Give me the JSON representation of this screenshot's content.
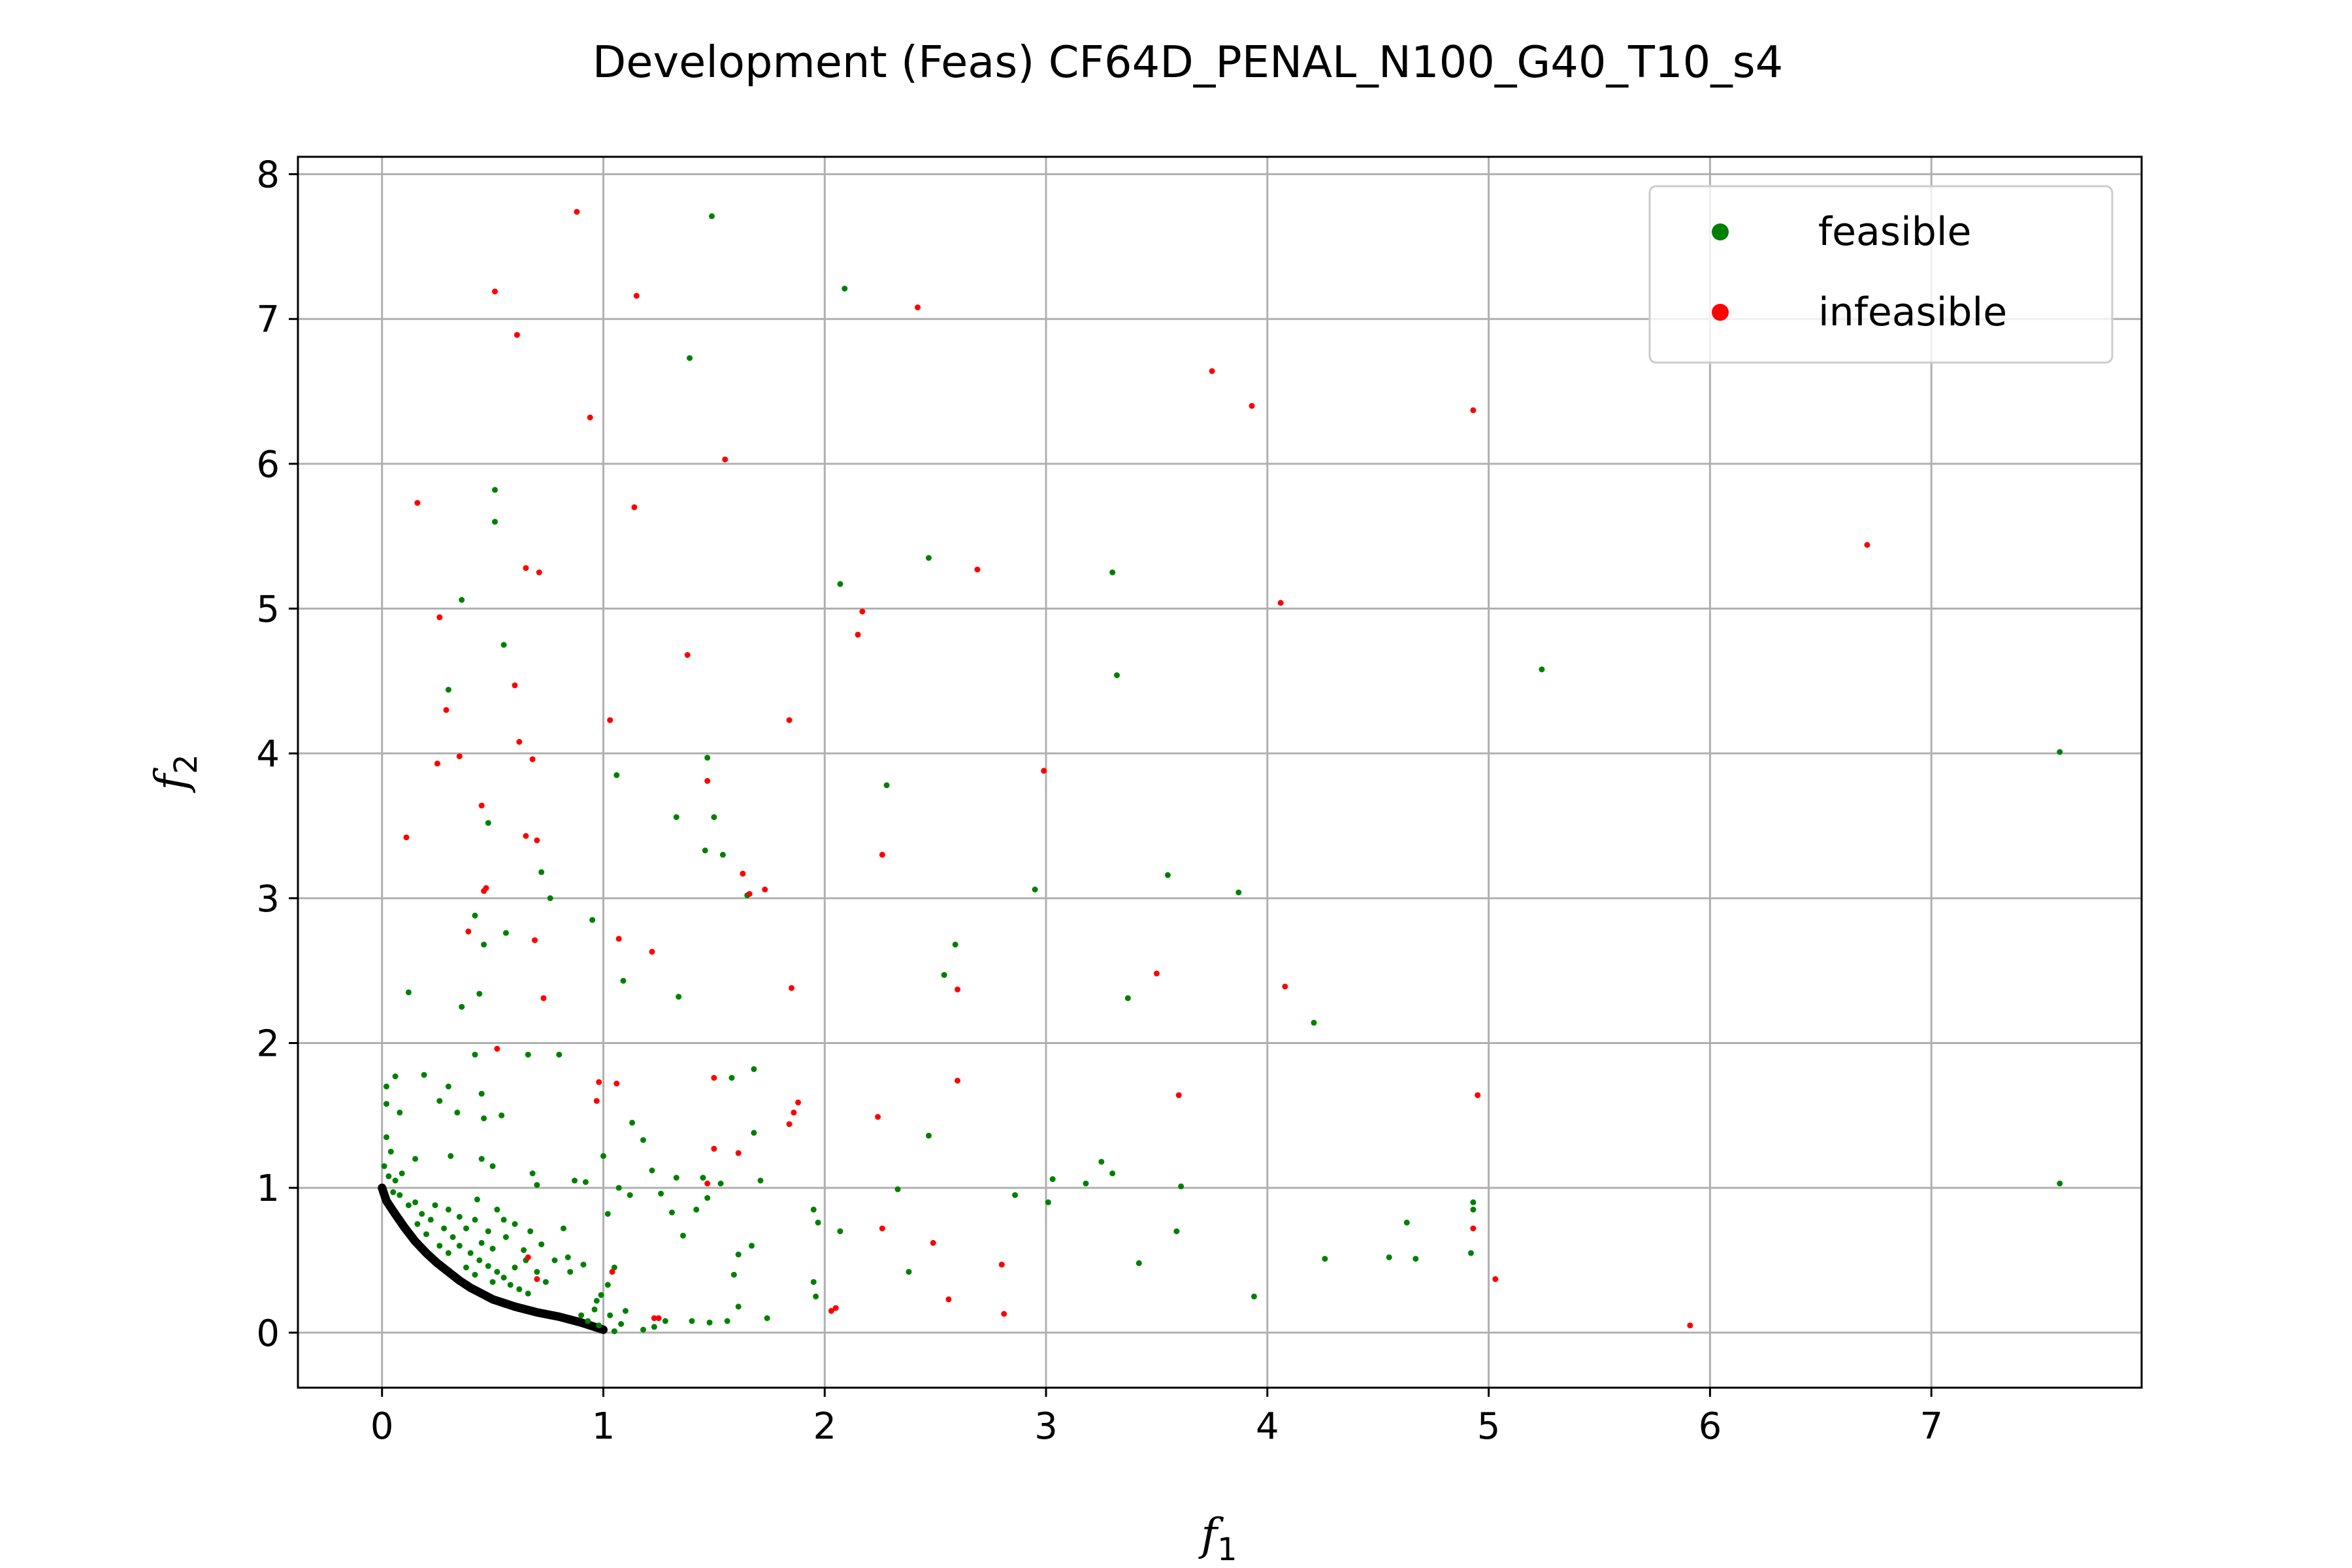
{
  "chart_data": {
    "type": "scatter",
    "title": "Development (Feas) CF64D_PENAL_N100_G40_T10_s4",
    "xlabel": "f",
    "xlabel_sub": "1",
    "ylabel": "f",
    "ylabel_sub": "2",
    "xlim": [
      -0.38,
      7.95
    ],
    "ylim": [
      -0.38,
      8.12
    ],
    "xticks": [
      0,
      1,
      2,
      3,
      4,
      5,
      6,
      7
    ],
    "yticks": [
      0,
      1,
      2,
      3,
      4,
      5,
      6,
      7,
      8
    ],
    "grid": true,
    "legend_position": "top-right",
    "legend": [
      {
        "label": "feasible",
        "color": "#008000"
      },
      {
        "label": "infeasible",
        "color": "#ff0000"
      }
    ],
    "front_color": "#000000",
    "front_curve": [
      [
        0.0,
        1.0
      ],
      [
        0.02,
        0.91
      ],
      [
        0.05,
        0.84
      ],
      [
        0.1,
        0.73
      ],
      [
        0.15,
        0.63
      ],
      [
        0.2,
        0.55
      ],
      [
        0.25,
        0.48
      ],
      [
        0.3,
        0.42
      ],
      [
        0.35,
        0.36
      ],
      [
        0.4,
        0.31
      ],
      [
        0.45,
        0.27
      ],
      [
        0.5,
        0.23
      ],
      [
        0.6,
        0.18
      ],
      [
        0.7,
        0.14
      ],
      [
        0.8,
        0.11
      ],
      [
        0.9,
        0.07
      ],
      [
        1.0,
        0.02
      ]
    ],
    "series": [
      {
        "name": "feasible",
        "color": "#008000",
        "points": [
          [
            1.49,
            7.71
          ],
          [
            2.09,
            7.21
          ],
          [
            1.39,
            6.73
          ],
          [
            0.51,
            5.82
          ],
          [
            0.51,
            5.6
          ],
          [
            2.47,
            5.35
          ],
          [
            3.3,
            5.25
          ],
          [
            2.07,
            5.17
          ],
          [
            0.36,
            5.06
          ],
          [
            0.55,
            4.75
          ],
          [
            5.24,
            4.58
          ],
          [
            3.32,
            4.54
          ],
          [
            0.3,
            4.44
          ],
          [
            1.47,
            3.97
          ],
          [
            1.06,
            3.85
          ],
          [
            2.28,
            3.78
          ],
          [
            7.58,
            4.01
          ],
          [
            1.33,
            3.56
          ],
          [
            1.5,
            3.56
          ],
          [
            0.48,
            3.52
          ],
          [
            1.46,
            3.33
          ],
          [
            1.54,
            3.3
          ],
          [
            0.72,
            3.18
          ],
          [
            0.76,
            3.0
          ],
          [
            2.95,
            3.06
          ],
          [
            3.55,
            3.16
          ],
          [
            3.87,
            3.04
          ],
          [
            1.65,
            3.02
          ],
          [
            0.42,
            2.88
          ],
          [
            0.95,
            2.85
          ],
          [
            0.56,
            2.76
          ],
          [
            0.46,
            2.68
          ],
          [
            2.59,
            2.68
          ],
          [
            2.54,
            2.47
          ],
          [
            1.09,
            2.43
          ],
          [
            0.12,
            2.35
          ],
          [
            0.44,
            2.34
          ],
          [
            1.34,
            2.32
          ],
          [
            3.37,
            2.31
          ],
          [
            0.36,
            2.25
          ],
          [
            4.21,
            2.14
          ],
          [
            0.42,
            1.92
          ],
          [
            0.66,
            1.92
          ],
          [
            0.8,
            1.92
          ],
          [
            1.68,
            1.82
          ],
          [
            1.58,
            1.76
          ],
          [
            0.02,
            1.7
          ],
          [
            0.06,
            1.77
          ],
          [
            0.19,
            1.78
          ],
          [
            0.3,
            1.7
          ],
          [
            0.45,
            1.65
          ],
          [
            0.26,
            1.6
          ],
          [
            0.02,
            1.58
          ],
          [
            0.08,
            1.52
          ],
          [
            0.34,
            1.52
          ],
          [
            0.46,
            1.48
          ],
          [
            0.54,
            1.5
          ],
          [
            1.13,
            1.45
          ],
          [
            1.68,
            1.38
          ],
          [
            2.47,
            1.36
          ],
          [
            0.02,
            1.35
          ],
          [
            0.04,
            1.25
          ],
          [
            0.15,
            1.2
          ],
          [
            0.31,
            1.22
          ],
          [
            0.45,
            1.2
          ],
          [
            1.0,
            1.22
          ],
          [
            1.18,
            1.33
          ],
          [
            1.22,
            1.12
          ],
          [
            1.33,
            1.07
          ],
          [
            1.45,
            1.07
          ],
          [
            1.71,
            1.05
          ],
          [
            1.53,
            1.03
          ],
          [
            0.01,
            1.15
          ],
          [
            0.03,
            1.08
          ],
          [
            0.06,
            1.05
          ],
          [
            0.09,
            1.1
          ],
          [
            0.5,
            1.15
          ],
          [
            0.68,
            1.1
          ],
          [
            0.7,
            1.02
          ],
          [
            0.87,
            1.05
          ],
          [
            0.92,
            1.04
          ],
          [
            1.07,
            1.0
          ],
          [
            3.25,
            1.18
          ],
          [
            3.03,
            1.06
          ],
          [
            3.18,
            1.03
          ],
          [
            3.3,
            1.1
          ],
          [
            3.61,
            1.01
          ],
          [
            7.58,
            1.03
          ],
          [
            1.02,
            0.82
          ],
          [
            1.26,
            0.96
          ],
          [
            1.12,
            0.95
          ],
          [
            1.31,
            0.83
          ],
          [
            1.36,
            0.67
          ],
          [
            1.42,
            0.85
          ],
          [
            1.47,
            0.93
          ],
          [
            1.95,
            0.85
          ],
          [
            1.97,
            0.76
          ],
          [
            2.07,
            0.7
          ],
          [
            2.33,
            0.99
          ],
          [
            2.86,
            0.95
          ],
          [
            3.01,
            0.9
          ],
          [
            3.59,
            0.7
          ],
          [
            4.93,
            0.9
          ],
          [
            4.93,
            0.85
          ],
          [
            4.63,
            0.76
          ],
          [
            4.55,
            0.52
          ],
          [
            4.67,
            0.51
          ],
          [
            4.26,
            0.51
          ],
          [
            4.92,
            0.55
          ],
          [
            3.42,
            0.48
          ],
          [
            3.94,
            0.25
          ],
          [
            2.38,
            0.42
          ],
          [
            1.61,
            0.54
          ],
          [
            1.67,
            0.6
          ],
          [
            1.59,
            0.4
          ],
          [
            1.95,
            0.35
          ],
          [
            1.96,
            0.25
          ],
          [
            1.61,
            0.18
          ],
          [
            1.74,
            0.1
          ],
          [
            1.56,
            0.08
          ],
          [
            1.48,
            0.07
          ],
          [
            1.4,
            0.08
          ],
          [
            1.28,
            0.08
          ],
          [
            1.23,
            0.04
          ],
          [
            1.18,
            0.02
          ],
          [
            1.05,
            0.01
          ],
          [
            0.98,
            0.05
          ],
          [
            1.03,
            0.12
          ],
          [
            0.97,
            0.22
          ],
          [
            1.02,
            0.33
          ],
          [
            1.05,
            0.45
          ],
          [
            0.84,
            0.52
          ],
          [
            0.78,
            0.5
          ],
          [
            0.85,
            0.42
          ],
          [
            0.91,
            0.47
          ],
          [
            0.72,
            0.61
          ],
          [
            0.67,
            0.7
          ],
          [
            0.82,
            0.72
          ],
          [
            0.6,
            0.75
          ],
          [
            0.55,
            0.78
          ],
          [
            0.52,
            0.85
          ],
          [
            0.43,
            0.92
          ],
          [
            0.38,
            0.72
          ],
          [
            0.24,
            0.88
          ],
          [
            0.15,
            0.9
          ],
          [
            0.08,
            0.95
          ],
          [
            0.05,
            0.97
          ],
          [
            0.12,
            0.88
          ],
          [
            0.18,
            0.82
          ],
          [
            0.22,
            0.78
          ],
          [
            0.28,
            0.72
          ],
          [
            0.32,
            0.66
          ],
          [
            0.35,
            0.6
          ],
          [
            0.4,
            0.55
          ],
          [
            0.44,
            0.5
          ],
          [
            0.48,
            0.46
          ],
          [
            0.52,
            0.42
          ],
          [
            0.55,
            0.38
          ],
          [
            0.5,
            0.35
          ],
          [
            0.42,
            0.4
          ],
          [
            0.38,
            0.45
          ],
          [
            0.3,
            0.55
          ],
          [
            0.26,
            0.6
          ],
          [
            0.2,
            0.68
          ],
          [
            0.16,
            0.75
          ],
          [
            0.58,
            0.33
          ],
          [
            0.62,
            0.3
          ],
          [
            0.66,
            0.27
          ],
          [
            0.6,
            0.45
          ],
          [
            0.65,
            0.5
          ],
          [
            0.7,
            0.42
          ],
          [
            0.74,
            0.35
          ],
          [
            0.45,
            0.62
          ],
          [
            0.5,
            0.58
          ],
          [
            0.35,
            0.8
          ],
          [
            0.3,
            0.85
          ],
          [
            0.9,
            0.12
          ],
          [
            0.93,
            0.08
          ],
          [
            0.96,
            0.16
          ],
          [
            0.99,
            0.26
          ],
          [
            1.08,
            0.06
          ],
          [
            1.1,
            0.15
          ],
          [
            0.56,
            0.66
          ],
          [
            0.64,
            0.57
          ],
          [
            0.48,
            0.7
          ],
          [
            0.42,
            0.78
          ]
        ]
      },
      {
        "name": "infeasible",
        "color": "#ff0000",
        "points": [
          [
            0.88,
            7.74
          ],
          [
            0.51,
            7.19
          ],
          [
            1.15,
            7.16
          ],
          [
            2.42,
            7.08
          ],
          [
            0.61,
            6.89
          ],
          [
            3.75,
            6.64
          ],
          [
            3.93,
            6.4
          ],
          [
            0.94,
            6.32
          ],
          [
            4.93,
            6.37
          ],
          [
            1.55,
            6.03
          ],
          [
            0.16,
            5.73
          ],
          [
            1.14,
            5.7
          ],
          [
            6.71,
            5.44
          ],
          [
            0.65,
            5.28
          ],
          [
            0.71,
            5.25
          ],
          [
            2.69,
            5.27
          ],
          [
            4.06,
            5.04
          ],
          [
            2.17,
            4.98
          ],
          [
            0.26,
            4.94
          ],
          [
            2.15,
            4.82
          ],
          [
            1.38,
            4.68
          ],
          [
            0.6,
            4.47
          ],
          [
            0.29,
            4.3
          ],
          [
            1.03,
            4.23
          ],
          [
            1.84,
            4.23
          ],
          [
            0.62,
            4.08
          ],
          [
            0.35,
            3.98
          ],
          [
            0.25,
            3.93
          ],
          [
            0.68,
            3.96
          ],
          [
            2.99,
            3.88
          ],
          [
            1.47,
            3.81
          ],
          [
            0.45,
            3.64
          ],
          [
            0.11,
            3.42
          ],
          [
            0.65,
            3.43
          ],
          [
            0.7,
            3.4
          ],
          [
            2.26,
            3.3
          ],
          [
            1.63,
            3.17
          ],
          [
            0.47,
            3.07
          ],
          [
            0.46,
            3.05
          ],
          [
            1.73,
            3.06
          ],
          [
            1.66,
            3.03
          ],
          [
            0.39,
            2.77
          ],
          [
            0.69,
            2.71
          ],
          [
            1.07,
            2.72
          ],
          [
            1.22,
            2.63
          ],
          [
            3.5,
            2.48
          ],
          [
            4.08,
            2.39
          ],
          [
            1.85,
            2.38
          ],
          [
            2.6,
            2.37
          ],
          [
            0.73,
            2.31
          ],
          [
            0.52,
            1.96
          ],
          [
            1.5,
            1.76
          ],
          [
            0.98,
            1.73
          ],
          [
            1.06,
            1.72
          ],
          [
            2.6,
            1.74
          ],
          [
            3.6,
            1.64
          ],
          [
            4.95,
            1.64
          ],
          [
            0.97,
            1.6
          ],
          [
            1.88,
            1.59
          ],
          [
            1.86,
            1.52
          ],
          [
            1.84,
            1.44
          ],
          [
            1.61,
            1.24
          ],
          [
            2.24,
            1.49
          ],
          [
            1.47,
            1.03
          ],
          [
            1.5,
            1.27
          ],
          [
            2.49,
            0.62
          ],
          [
            0.66,
            0.52
          ],
          [
            0.7,
            0.37
          ],
          [
            1.04,
            0.42
          ],
          [
            2.26,
            0.72
          ],
          [
            2.8,
            0.47
          ],
          [
            2.56,
            0.23
          ],
          [
            2.81,
            0.13
          ],
          [
            2.05,
            0.17
          ],
          [
            2.03,
            0.15
          ],
          [
            4.93,
            0.72
          ],
          [
            5.03,
            0.37
          ],
          [
            5.91,
            0.05
          ],
          [
            1.25,
            0.1
          ],
          [
            1.23,
            0.1
          ]
        ]
      }
    ]
  }
}
